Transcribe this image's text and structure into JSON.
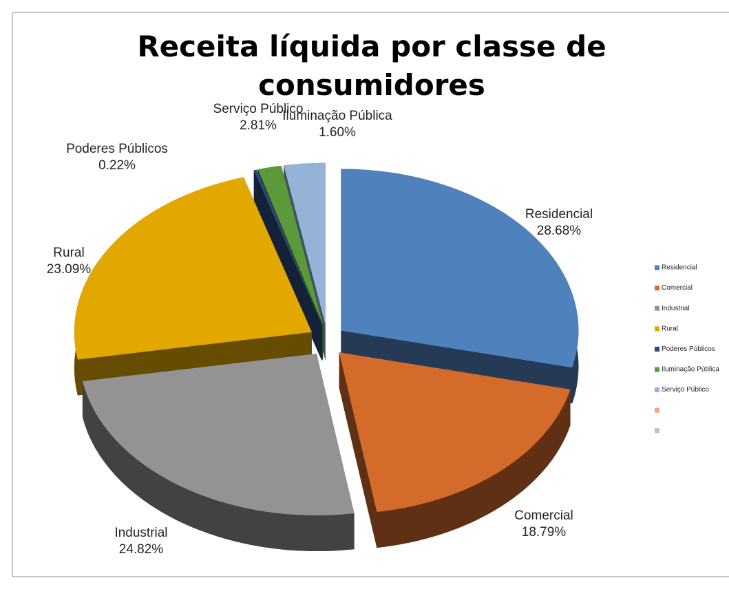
{
  "chart_data": {
    "type": "pie",
    "title": "Receita líquida por classe de consumidores",
    "categories": [
      "Residencial",
      "Comercial",
      "Industrial",
      "Rural",
      "Poderes Públicos",
      "Iluminação Pública",
      "Serviço Público",
      null,
      null
    ],
    "values": [
      28.68,
      18.79,
      24.82,
      23.09,
      0.22,
      1.6,
      2.81,
      0,
      0
    ],
    "value_labels": [
      "28.68%",
      "18.79%",
      "24.82%",
      "23.09%",
      "0.22%",
      "1.60%",
      "2.81%",
      null,
      null
    ],
    "colors": [
      "#4f81bd",
      "#d46b2b",
      "#939393",
      "#e3a800",
      "#2a4b7c",
      "#5b9a3a",
      "#95b3d7",
      "#f4a582",
      "#bfbfbf"
    ],
    "legend": "right"
  }
}
